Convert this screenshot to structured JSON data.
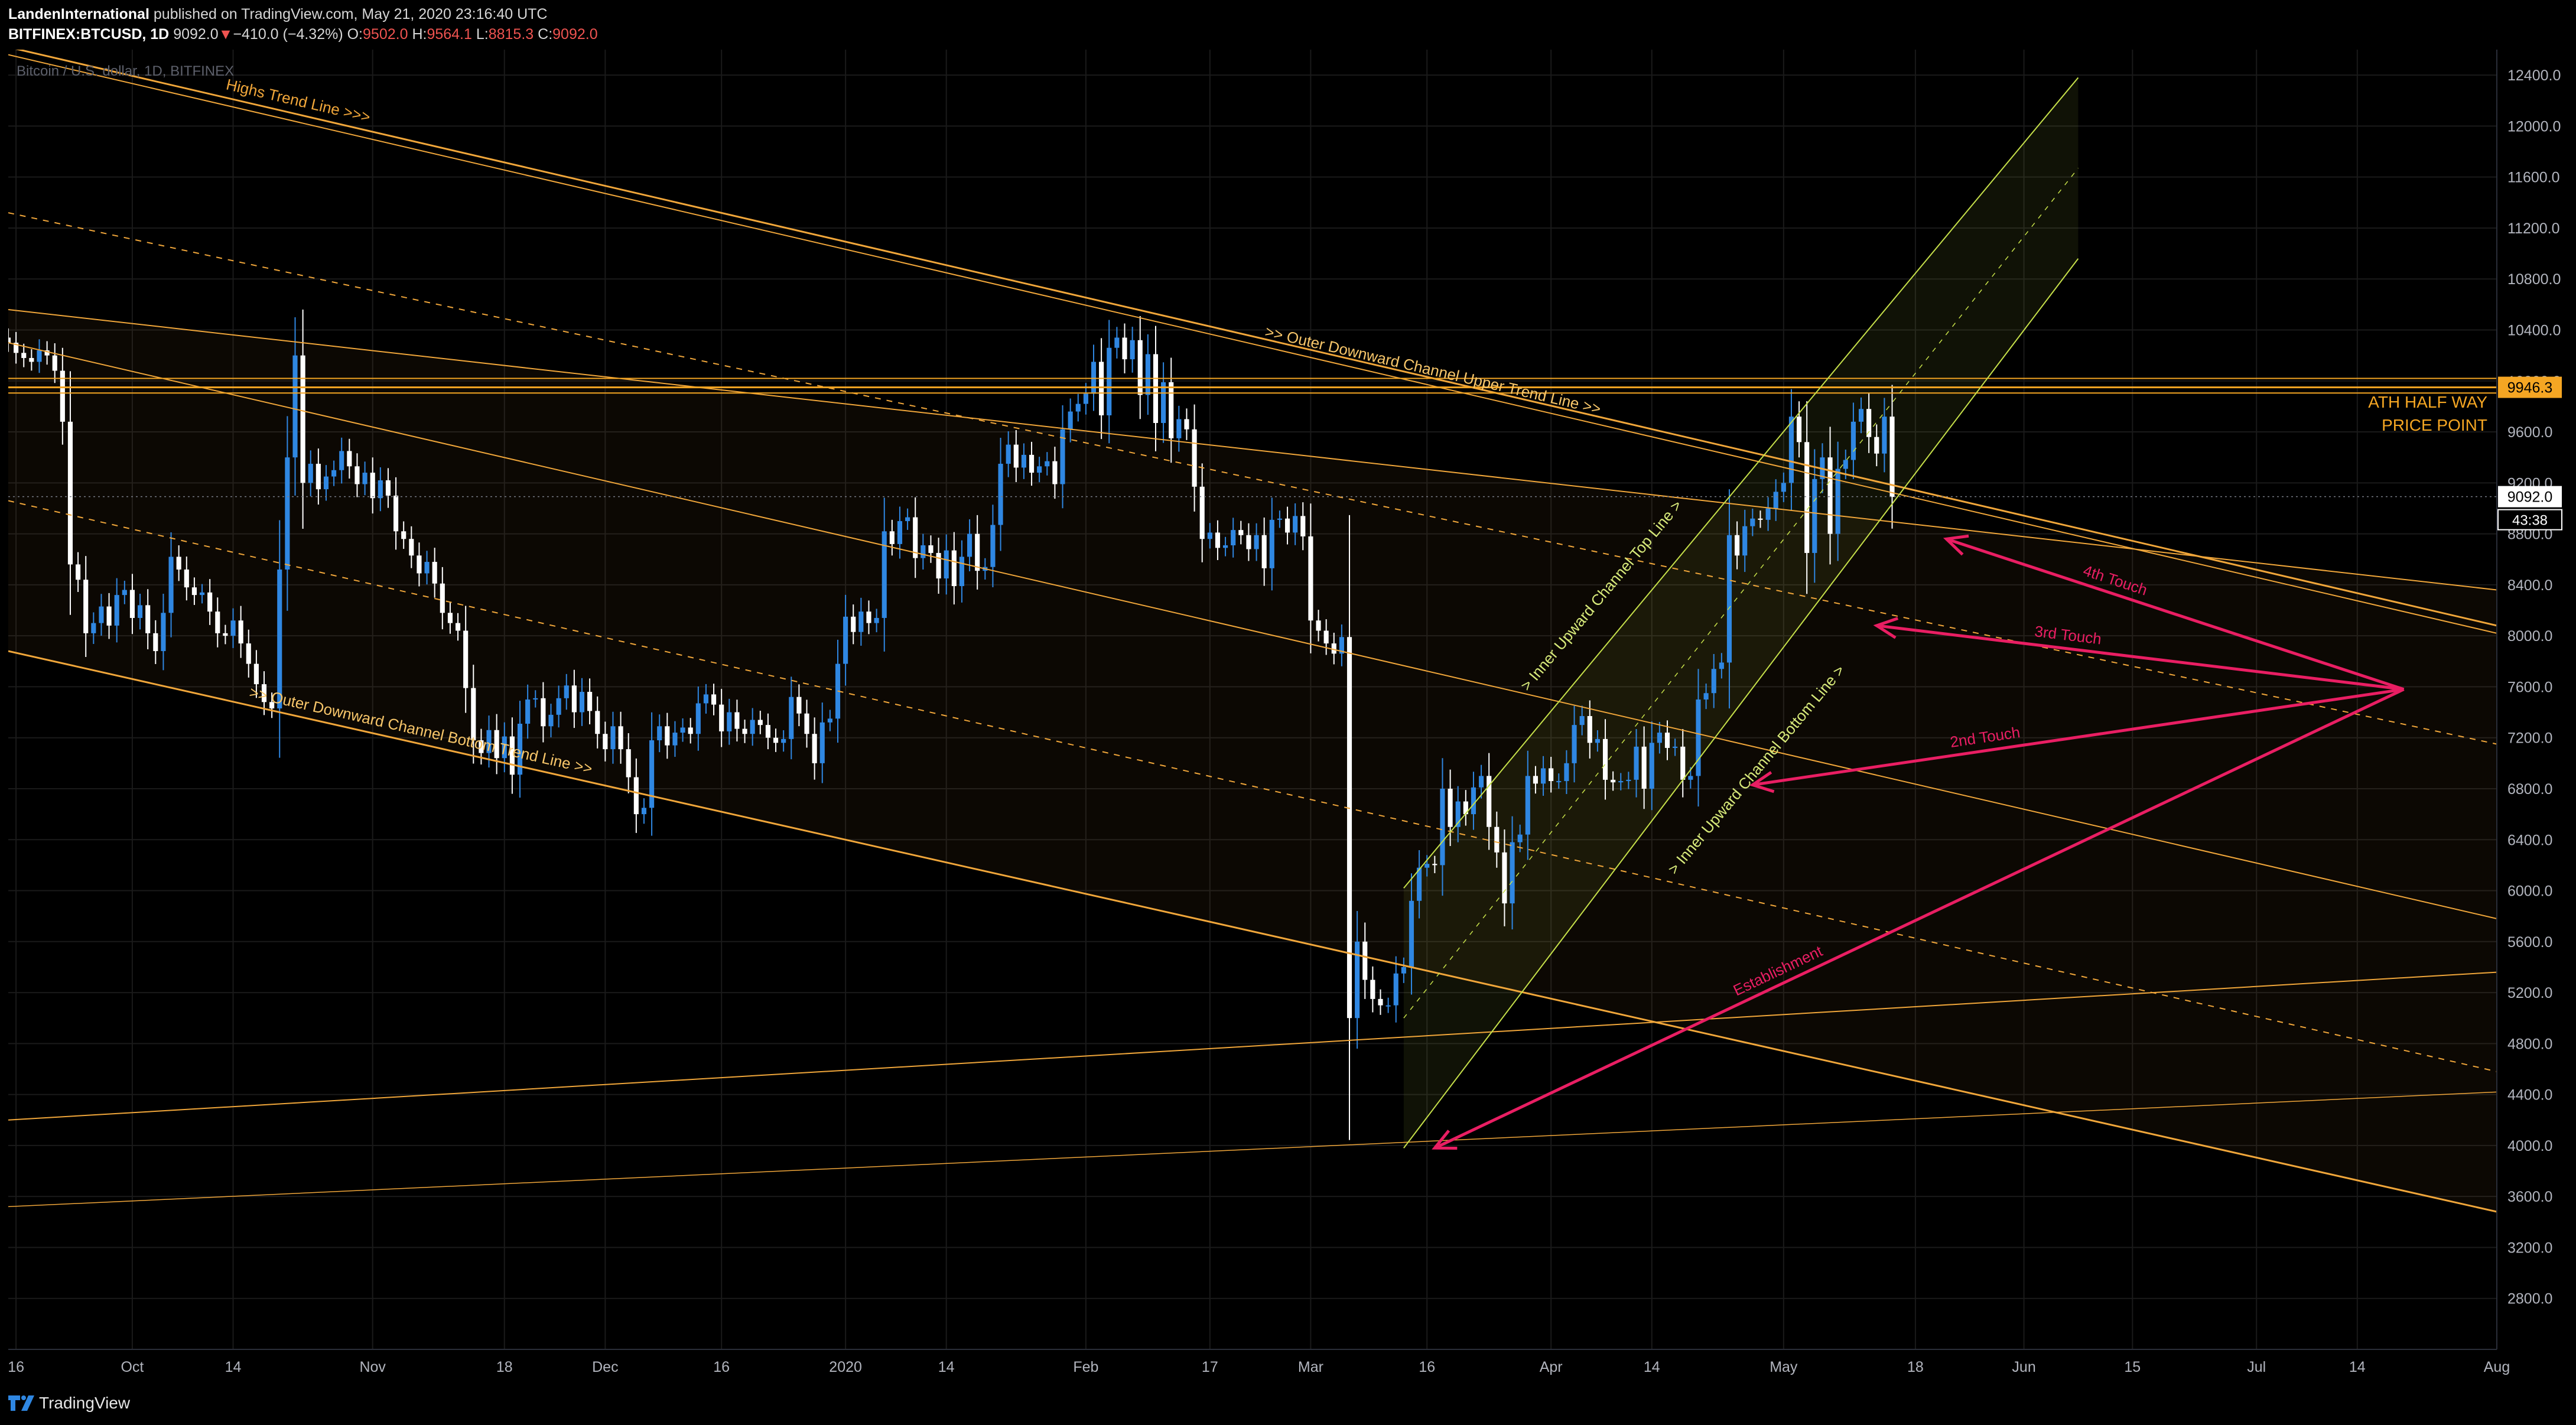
{
  "header": {
    "publisher": "LandenInternational",
    "published_text": "published on TradingView.com, May 21, 2020 23:16:40 UTC",
    "symbol": "BITFINEX:BTCUSD, 1D",
    "last": "9092.0",
    "change_arrow": "▼",
    "change": "−410.0 (−4.32%)",
    "o_label": "O:",
    "o_value": "9502.0",
    "h_label": "H:",
    "h_value": "9564.1",
    "l_label": "L:",
    "l_value": "8815.3",
    "c_label": "C:",
    "c_value": "9092.0"
  },
  "footer": {
    "brand": "TradingView"
  },
  "colors": {
    "background": "#000000",
    "up_candle": "#2f87e2",
    "down_candle": "#ffffff",
    "trend_line": "#f0a63a",
    "ath_line": "#f5a623",
    "channel_line": "#c6e04a",
    "annotation": "#e91e63",
    "grid": "#1a1a1a",
    "axis_text": "#b2b5be",
    "price_tag": "#f5a623"
  },
  "chart_data": {
    "type": "candlestick",
    "title": "",
    "watermark": "Bitcoin / U.S. dollar, 1D, BITFINEX",
    "y_range": [
      2400,
      12600
    ],
    "y_ticks": [
      2800,
      3200,
      3600,
      4000,
      4400,
      4800,
      5200,
      5600,
      6000,
      6400,
      6800,
      7200,
      7600,
      8000,
      8400,
      8800,
      9200,
      9600,
      10000,
      10400,
      10800,
      11200,
      11600,
      12000,
      12400
    ],
    "y_tick_labels": [
      "2800.0",
      "3200.0",
      "3600.0",
      "4000.0",
      "4400.0",
      "4800.0",
      "5200.0",
      "5600.0",
      "6000.0",
      "6400.0",
      "6800.0",
      "7200.0",
      "7600.0",
      "8000.0",
      "8400.0",
      "8800.0",
      "9200.0",
      "9600.0",
      "10000.0",
      "10400.0",
      "10800.0",
      "11200.0",
      "11600.0",
      "12000.0",
      "12400.0"
    ],
    "x_range": [
      "2019-09-15",
      "2020-08-01"
    ],
    "x_ticks": [
      {
        "date": "2019-09-16",
        "label": "16"
      },
      {
        "date": "2019-10-01",
        "label": "Oct"
      },
      {
        "date": "2019-10-14",
        "label": "14"
      },
      {
        "date": "2019-11-01",
        "label": "Nov"
      },
      {
        "date": "2019-11-18",
        "label": "18"
      },
      {
        "date": "2019-12-01",
        "label": "Dec"
      },
      {
        "date": "2019-12-16",
        "label": "16"
      },
      {
        "date": "2020-01-01",
        "label": "2020"
      },
      {
        "date": "2020-01-14",
        "label": "14"
      },
      {
        "date": "2020-02-01",
        "label": "Feb"
      },
      {
        "date": "2020-02-17",
        "label": "17"
      },
      {
        "date": "2020-03-01",
        "label": "Mar"
      },
      {
        "date": "2020-03-16",
        "label": "16"
      },
      {
        "date": "2020-04-01",
        "label": "Apr"
      },
      {
        "date": "2020-04-14",
        "label": "14"
      },
      {
        "date": "2020-05-01",
        "label": "May"
      },
      {
        "date": "2020-05-18",
        "label": "18"
      },
      {
        "date": "2020-06-01",
        "label": "Jun"
      },
      {
        "date": "2020-06-15",
        "label": "15"
      },
      {
        "date": "2020-07-01",
        "label": "Jul"
      },
      {
        "date": "2020-07-14",
        "label": "14"
      },
      {
        "date": "2020-08-01",
        "label": "Aug"
      }
    ],
    "candle_start_date": "2019-09-15",
    "candles_close": [
      10300,
      10220,
      10180,
      10150,
      10240,
      10200,
      10080,
      9680,
      8560,
      8440,
      8020,
      8100,
      8230,
      8080,
      8320,
      8360,
      8140,
      8240,
      8020,
      7880,
      8180,
      8620,
      8520,
      8380,
      8320,
      8340,
      8190,
      8020,
      8000,
      8120,
      7940,
      7780,
      7620,
      7480,
      7430,
      8520,
      9400,
      10200,
      9200,
      9350,
      9150,
      9250,
      9300,
      9450,
      9330,
      9190,
      9280,
      9080,
      9220,
      9100,
      8820,
      8760,
      8630,
      8490,
      8580,
      8410,
      8180,
      8100,
      8040,
      7590,
      7180,
      7080,
      7260,
      7040,
      7210,
      6910,
      7310,
      7500,
      7510,
      7290,
      7380,
      7510,
      7610,
      7400,
      7560,
      7410,
      7230,
      7110,
      7290,
      7110,
      6890,
      6600,
      6650,
      7180,
      7290,
      7140,
      7240,
      7280,
      7230,
      7470,
      7540,
      7460,
      7250,
      7400,
      7270,
      7230,
      7340,
      7300,
      7200,
      7160,
      7190,
      7520,
      7390,
      7230,
      7000,
      7320,
      7350,
      7780,
      8150,
      8030,
      8190,
      8100,
      8140,
      8820,
      8720,
      8900,
      8930,
      8610,
      8710,
      8650,
      8450,
      8670,
      8390,
      8620,
      8800,
      8510,
      8540,
      8870,
      9350,
      9500,
      9320,
      9420,
      9280,
      9330,
      9370,
      9190,
      9620,
      9760,
      9820,
      9900,
      10150,
      9730,
      10260,
      10340,
      10170,
      10320,
      9890,
      10210,
      9670,
      9990,
      9550,
      9700,
      9620,
      9170,
      8760,
      8810,
      8690,
      8710,
      8830,
      8790,
      8680,
      8790,
      8530,
      8910,
      8920,
      8810,
      8940,
      8780,
      8120,
      8040,
      7940,
      7860,
      7990,
      5000,
      5600,
      5300,
      5150,
      5100,
      5100,
      5350,
      5400,
      5920,
      6180,
      6210,
      6200,
      6800,
      6500,
      6700,
      6600,
      6810,
      6900,
      6500,
      6300,
      5900,
      6380,
      6440,
      6900,
      6840,
      6960,
      6860,
      6860,
      7000,
      7300,
      7370,
      7160,
      7190,
      6870,
      6850,
      6860,
      6870,
      7130,
      6800,
      7160,
      7240,
      7120,
      7130,
      6870,
      6900,
      7500,
      7550,
      7740,
      7790,
      8790,
      8630,
      8860,
      8920,
      8910,
      9000,
      9130,
      9200,
      9720,
      9520,
      8650,
      9230,
      9400,
      8800,
      9310,
      9380,
      9680,
      9780,
      9560,
      9430,
      9720,
      9090
    ]
  },
  "annotations": {
    "ath_label_line1": "ATH HALF WAY",
    "ath_label_line2": "PRICE POINT",
    "ath_price_tag": "9946.3",
    "last_price_tag": "9092.0",
    "countdown_tag": "43:38",
    "hidden_label": "Highs Trend Line >>>",
    "outer_upper_label": ">> Outer Downward Channel Upper Trend Line >>",
    "outer_bottom_label": ">> Outer Downward Channel Bottom Trend Line >>",
    "inner_top_label": "> Inner Upward Channel Top Line >",
    "inner_bottom_label": "> Inner Upward Channel Bottom Line >",
    "touch4": "4th Touch",
    "touch3": "3rd Touch",
    "touch2": "2nd Touch",
    "establishment": "Establishment"
  }
}
